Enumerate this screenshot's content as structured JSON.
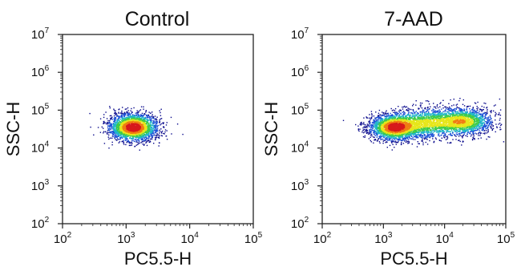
{
  "chart_data": [
    {
      "type": "scatter",
      "title": "Control",
      "xlabel": "PC5.5-H",
      "ylabel": "SSC-H",
      "xscale": "log",
      "yscale": "log",
      "xlim": [
        100,
        100000
      ],
      "ylim": [
        100,
        10000000
      ],
      "xticks": [
        {
          "base": "10",
          "exp": "2"
        },
        {
          "base": "10",
          "exp": "3"
        },
        {
          "base": "10",
          "exp": "4"
        },
        {
          "base": "10",
          "exp": "5"
        }
      ],
      "yticks": [
        {
          "base": "10",
          "exp": "2"
        },
        {
          "base": "10",
          "exp": "3"
        },
        {
          "base": "10",
          "exp": "4"
        },
        {
          "base": "10",
          "exp": "5"
        },
        {
          "base": "10",
          "exp": "6"
        },
        {
          "base": "10",
          "exp": "7"
        }
      ],
      "grid": false,
      "legend": "none",
      "colormap": [
        "#0a0a8c",
        "#1a4fd6",
        "#1fb5c9",
        "#3ecb4a",
        "#e6e619",
        "#f07d12",
        "#d7191c"
      ],
      "populations": [
        {
          "x_center": 1300,
          "y_center": 35000,
          "x_spread_decades": 0.19,
          "y_spread_decades": 0.18,
          "points": 2600
        }
      ],
      "density_peaks": [
        {
          "x": 1300,
          "y": 35000
        }
      ]
    },
    {
      "type": "scatter",
      "title": "7-AAD",
      "xlabel": "PC5.5-H",
      "ylabel": "SSC-H",
      "xscale": "log",
      "yscale": "log",
      "xlim": [
        100,
        100000
      ],
      "ylim": [
        100,
        10000000
      ],
      "xticks": [
        {
          "base": "10",
          "exp": "2"
        },
        {
          "base": "10",
          "exp": "3"
        },
        {
          "base": "10",
          "exp": "4"
        },
        {
          "base": "10",
          "exp": "5"
        }
      ],
      "yticks": [
        {
          "base": "10",
          "exp": "2"
        },
        {
          "base": "10",
          "exp": "3"
        },
        {
          "base": "10",
          "exp": "4"
        },
        {
          "base": "10",
          "exp": "5"
        },
        {
          "base": "10",
          "exp": "6"
        },
        {
          "base": "10",
          "exp": "7"
        }
      ],
      "grid": false,
      "legend": "none",
      "colormap": [
        "#0a0a8c",
        "#1a4fd6",
        "#1fb5c9",
        "#3ecb4a",
        "#e6e619",
        "#f07d12",
        "#d7191c"
      ],
      "populations": [
        {
          "x_center": 1500,
          "y_center": 35000,
          "x_spread_decades": 0.2,
          "y_spread_decades": 0.17,
          "points": 2400
        },
        {
          "x_center": 5000,
          "y_center": 45000,
          "x_spread_decades": 0.28,
          "y_spread_decades": 0.2,
          "points": 1400
        },
        {
          "x_center": 20000,
          "y_center": 50000,
          "x_spread_decades": 0.25,
          "y_spread_decades": 0.18,
          "points": 1700
        }
      ],
      "density_peaks": [
        {
          "x": 1500,
          "y": 35000
        },
        {
          "x": 18000,
          "y": 42000
        }
      ]
    }
  ]
}
